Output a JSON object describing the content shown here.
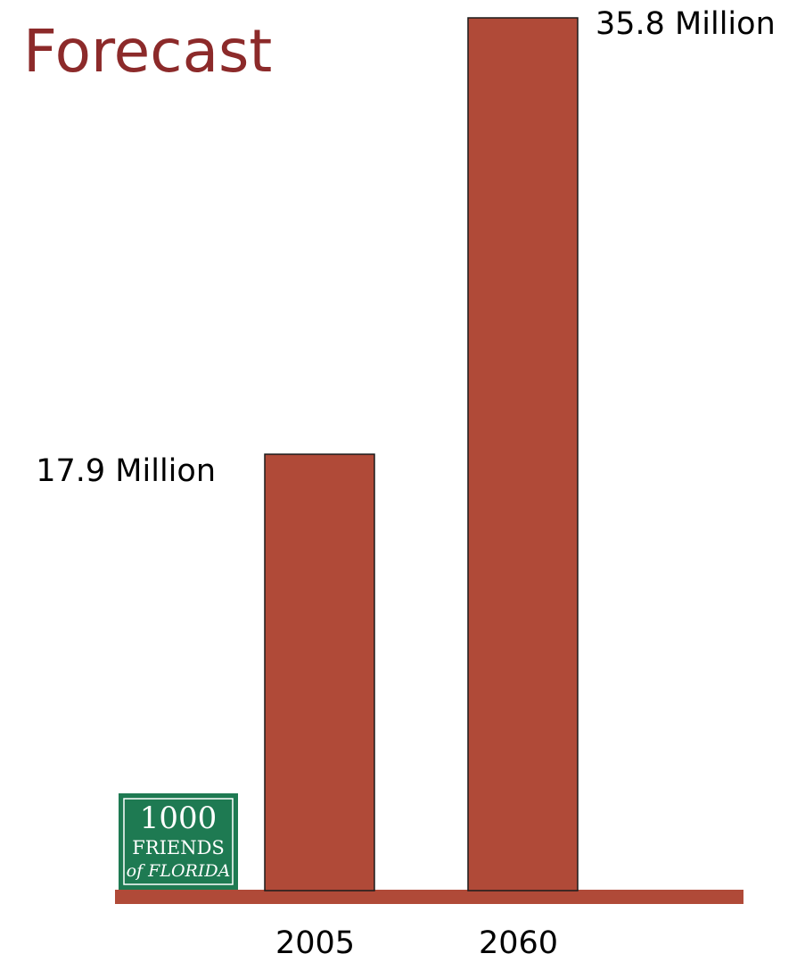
{
  "colors": {
    "bar": "#b04a38",
    "title": "#8c2a2a",
    "logo_bg": "#1e7a52"
  },
  "logo": {
    "line1": "1000",
    "line2": "FRIENDS",
    "line3": "of FLORIDA"
  },
  "chart_data": {
    "type": "bar",
    "title": "Forecast",
    "categories": [
      "2005",
      "2060"
    ],
    "values": [
      17.9,
      35.8
    ],
    "value_labels": [
      "17.9 Million",
      "35.8 Million"
    ],
    "unit": "Million",
    "xlabel": "",
    "ylabel": "",
    "ylim": [
      0,
      35.8
    ],
    "grid": false,
    "legend": "none"
  }
}
